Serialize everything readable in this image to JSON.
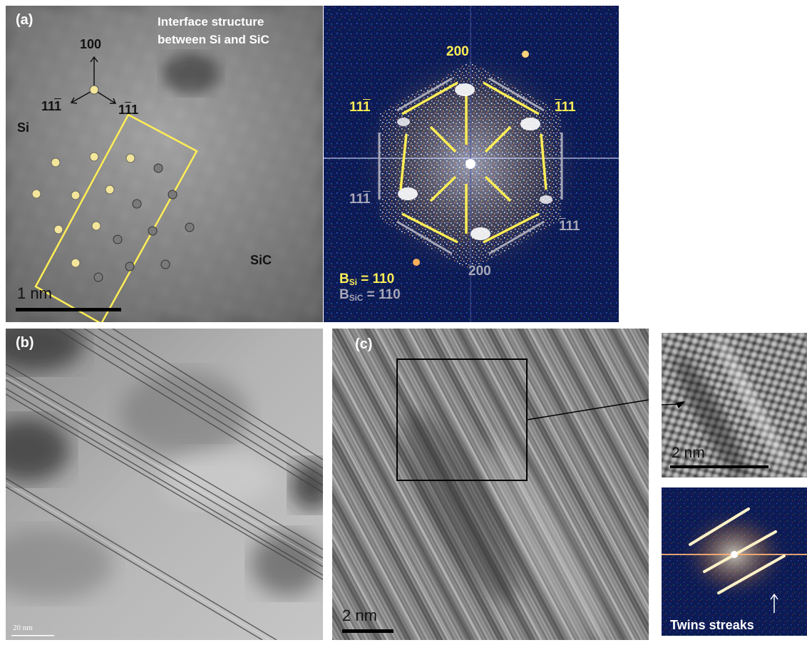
{
  "panel_a": {
    "label": "(a)",
    "title_line1": "Interface structure",
    "title_line2": "between Si and SiC",
    "dir_100": "100",
    "dir_left": {
      "pre": "11",
      "bar": "1",
      "post": ""
    },
    "dir_right": {
      "pre": "1",
      "bar": "1",
      "post": "1"
    },
    "si": "Si",
    "sic": "SiC",
    "scale": "1 nm"
  },
  "fft": {
    "top": "200",
    "bottom": "200",
    "ul": {
      "pre": "11",
      "bar": "1",
      "post": ""
    },
    "ur": {
      "pre": "",
      "bar": "1",
      "post": "11"
    },
    "ll": {
      "pre": "11",
      "bar": "1",
      "post": ""
    },
    "lr": {
      "pre": "",
      "bar": "1",
      "post": "11"
    },
    "b_si_main": "B",
    "b_si_sub": "Si",
    "b_si_val": " = 110",
    "b_sic_main": "B",
    "b_sic_sub": "SiC",
    "b_sic_val": " = 110"
  },
  "panel_b": {
    "label": "(b)",
    "scale": "20 nm"
  },
  "panel_c": {
    "label": "(c)",
    "scale": "2 nm"
  },
  "inset_zoom": {
    "scale": "2 nm"
  },
  "inset_fft": {
    "caption": "Twins streaks"
  },
  "colors": {
    "yellow": "#ffee55",
    "gray": "#a8a8b8",
    "fft_bg": "#0c1a55"
  }
}
